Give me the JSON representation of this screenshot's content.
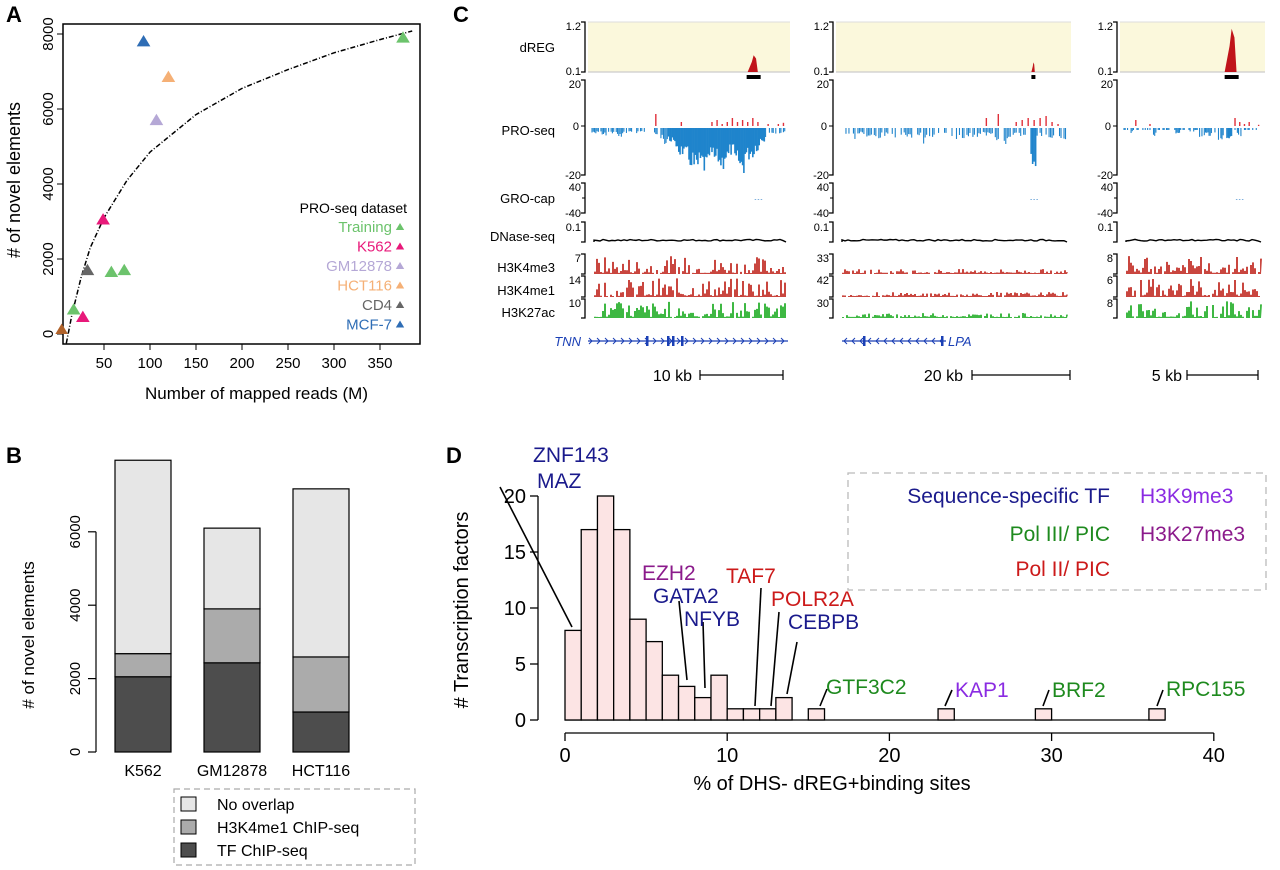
{
  "panel_labels": {
    "a": "A",
    "b": "B",
    "c": "C",
    "d": "D"
  },
  "chart_data": [
    {
      "id": "A",
      "type": "scatter",
      "title": "",
      "xlabel": "Number of mapped reads (M)",
      "ylabel": "# of novel elements",
      "xlim": [
        0,
        385
      ],
      "ylim": [
        -250,
        8300
      ],
      "xticks": [
        50,
        100,
        150,
        200,
        250,
        300,
        350
      ],
      "yticks": [
        0,
        2000,
        4000,
        6000,
        8000
      ],
      "legend_title": "PRO-seq dataset",
      "legend_position": "bottom-right",
      "series": [
        {
          "name": "Training",
          "color": "#6cc36c",
          "points": [
            [
              17,
              650
            ],
            [
              58,
              1650
            ],
            [
              72,
              1700
            ],
            [
              375,
              7900
            ]
          ]
        },
        {
          "name": "K562",
          "color": "#e8197a",
          "points": [
            [
              27,
              450
            ],
            [
              49,
              3050
            ]
          ]
        },
        {
          "name": "GM12878",
          "color": "#b5a8d6",
          "points": [
            [
              107,
              5700
            ]
          ]
        },
        {
          "name": "HCT116",
          "color": "#f5b076",
          "points": [
            [
              120,
              6850
            ]
          ]
        },
        {
          "name": "CD4",
          "color": "#666666",
          "points": [
            [
              32,
              1700
            ]
          ]
        },
        {
          "name": "MCF-7",
          "color": "#2e6db5",
          "points": [
            [
              93,
              7800
            ]
          ]
        }
      ],
      "extra_points": [
        {
          "color": "#b0622a",
          "point": [
            4,
            120
          ]
        }
      ],
      "fit_curve": {
        "style": "dashed",
        "description": "saturating fit",
        "points": [
          [
            9,
            -250
          ],
          [
            15,
            500
          ],
          [
            25,
            1500
          ],
          [
            35,
            2300
          ],
          [
            50,
            3100
          ],
          [
            75,
            4100
          ],
          [
            100,
            4850
          ],
          [
            150,
            5850
          ],
          [
            200,
            6550
          ],
          [
            250,
            7050
          ],
          [
            300,
            7500
          ],
          [
            350,
            7850
          ],
          [
            385,
            8080
          ]
        ]
      }
    },
    {
      "id": "B",
      "type": "bar",
      "stacked": true,
      "xlabel": "",
      "ylabel": "# of novel elements",
      "ylim": [
        0,
        8000
      ],
      "yticks": [
        0,
        2000,
        4000,
        6000
      ],
      "categories": [
        "K562",
        "GM12878",
        "HCT116"
      ],
      "series": [
        {
          "name": "TF ChIP-seq",
          "color": "#4d4d4d",
          "values": [
            2050,
            2430,
            1090
          ]
        },
        {
          "name": "H3K4me1 ChIP-seq",
          "color": "#ababab",
          "values": [
            630,
            1470,
            1500
          ]
        },
        {
          "name": "No overlap",
          "color": "#e6e6e6",
          "values": [
            5270,
            2200,
            4580
          ]
        }
      ],
      "legend_order": [
        "No overlap",
        "H3K4me1 ChIP-seq",
        "TF ChIP-seq"
      ],
      "legend_position": "bottom"
    },
    {
      "id": "C",
      "type": "table",
      "description": "Genome browser tracks",
      "track_labels": [
        "dREG",
        "PRO-seq",
        "GRO-cap",
        "DNase-seq",
        "H3K4me3",
        "H3K4me1",
        "H3K27ac"
      ],
      "loci": [
        {
          "gene": "TNN",
          "strand": "+",
          "scale_label": "10 kb",
          "scales": {
            "dREG": [
              "1.2",
              "0.1"
            ],
            "PRO-seq": [
              "20",
              "0",
              "-20"
            ],
            "GRO-cap": [
              "40",
              "-40"
            ],
            "DNase-seq": [
              "0.1"
            ],
            "H3K4me3": [
              "7"
            ],
            "H3K4me1": [
              "14"
            ],
            "H3K27ac": [
              "10"
            ]
          },
          "dreg_peak": 0.82,
          "dreg_height": 0.35,
          "proseq_minus_profile": [
            0.05,
            0.03,
            0.08,
            0.04,
            0.06,
            0.1,
            0.05,
            0.04,
            0.07,
            0.03,
            0.05,
            0.08,
            0.1,
            0.12,
            0.2,
            0.3,
            0.45,
            0.6,
            0.7,
            0.85,
            1.0,
            0.9,
            1.0,
            0.7,
            0.8,
            0.9,
            0.75,
            0.6,
            0.85,
            1.0,
            0.7,
            0.65,
            0.5,
            0.3,
            0.1,
            0.05,
            0.08,
            0.04
          ],
          "proseq_plus_profile": [
            0,
            0,
            0,
            0,
            0,
            0,
            0,
            0,
            0,
            0,
            0,
            0,
            0.3,
            0,
            0,
            0,
            0,
            0.1,
            0,
            0,
            0,
            0,
            0,
            0.1,
            0.15,
            0.05,
            0.1,
            0.2,
            0.1,
            0.15,
            0.1,
            0.2,
            0.1,
            0,
            0.05,
            0,
            0.05,
            0.08
          ]
        },
        {
          "gene": "LPA",
          "strand": "-",
          "scale_label": "20 kb",
          "scales": {
            "dREG": [
              "1.2",
              "0.1"
            ],
            "PRO-seq": [
              "20",
              "0",
              "-20"
            ],
            "GRO-cap": [
              "40",
              "-40"
            ],
            "DNase-seq": [
              "0.1"
            ],
            "H3K4me3": [
              "33"
            ],
            "H3K4me1": [
              "42"
            ],
            "H3K27ac": [
              "30"
            ]
          },
          "dreg_peak": 0.84,
          "dreg_height": 0.2,
          "proseq_minus_profile": [
            0.1,
            0.08,
            0.15,
            0.05,
            0.1,
            0.08,
            0.12,
            0.1,
            0.06,
            0.12,
            0.08,
            0.1,
            0.15,
            0.1,
            0.2,
            0.1,
            0.12,
            0.08,
            0.1,
            0.15,
            0.12,
            0.1,
            0.15,
            0.12,
            0.08,
            0.1,
            0.15,
            0.2,
            0.12,
            0.1,
            0.1,
            0.15,
            1.0,
            0.1,
            0.08,
            0.12,
            0.1,
            0.15
          ],
          "proseq_plus_profile": [
            0,
            0,
            0,
            0,
            0,
            0,
            0,
            0,
            0,
            0,
            0,
            0,
            0,
            0,
            0,
            0,
            0,
            0,
            0,
            0,
            0,
            0,
            0,
            0,
            0.2,
            0,
            0.3,
            0,
            0,
            0.1,
            0.15,
            0.2,
            0.15,
            0.2,
            0.25,
            0.1,
            0.05,
            0
          ]
        },
        {
          "gene": "",
          "strand": "",
          "scale_label": "5 kb",
          "scales": {
            "dREG": [
              "1.2",
              "0.1"
            ],
            "PRO-seq": [
              "20",
              "0",
              "-20"
            ],
            "GRO-cap": [
              "40",
              "-40"
            ],
            "DNase-seq": [
              "0.1"
            ],
            "H3K4me3": [
              "8"
            ],
            "H3K4me1": [
              "6"
            ],
            "H3K27ac": [
              "8"
            ]
          },
          "dreg_peak": 0.77,
          "dreg_height": 0.9,
          "proseq_minus_profile": [
            0,
            0.05,
            0,
            0,
            0,
            0,
            0.1,
            0,
            0,
            0,
            0,
            0.05,
            0,
            0,
            0.05,
            0,
            0.1,
            0.08,
            0.12,
            0.1,
            0.15,
            0.12,
            0.3,
            0,
            0.1,
            0,
            0,
            0,
            0
          ],
          "proseq_plus_profile": [
            0,
            0,
            0.15,
            0,
            0,
            0.05,
            0,
            0,
            0,
            0,
            0,
            0,
            0,
            0,
            0,
            0,
            0,
            0,
            0,
            0,
            0,
            0,
            0,
            0.2,
            0.1,
            0.05,
            0.1,
            0,
            0.03
          ]
        }
      ]
    },
    {
      "id": "D",
      "type": "bar",
      "histogram": true,
      "xlabel": "% of DHS- dREG+binding sites",
      "ylabel": "# Transcription factors",
      "xlim": [
        0,
        40
      ],
      "ylim": [
        0,
        20
      ],
      "xticks": [
        0,
        10,
        20,
        30,
        40
      ],
      "yticks": [
        0,
        5,
        10,
        15,
        20
      ],
      "bin_width": 1,
      "bin_start": 0,
      "values": [
        8,
        17,
        20,
        17,
        9,
        7,
        4,
        3,
        2,
        4,
        1,
        1,
        1,
        2,
        0,
        1,
        0,
        0,
        0,
        0,
        0,
        0,
        0,
        1,
        0,
        0,
        0,
        0,
        0,
        1,
        0,
        0,
        0,
        0,
        0,
        0,
        1
      ],
      "bar_color": "#fce4e4",
      "annotations": [
        {
          "text": "ZNF143",
          "category": "Sequence-specific TF",
          "x": 0.5
        },
        {
          "text": "MAZ",
          "category": "Sequence-specific TF",
          "x": 0.5
        },
        {
          "text": "EZH2",
          "category": "H3K27me3",
          "x": 7.5
        },
        {
          "text": "GATA2",
          "category": "Sequence-specific TF",
          "x": 7.5
        },
        {
          "text": "NFYB",
          "category": "Sequence-specific TF",
          "x": 8.5
        },
        {
          "text": "TAF7",
          "category": "Pol II/ PIC",
          "x": 11.5
        },
        {
          "text": "POLR2A",
          "category": "Pol II/ PIC",
          "x": 12.5
        },
        {
          "text": "CEBPB",
          "category": "Sequence-specific TF",
          "x": 13.5
        },
        {
          "text": "GTF3C2",
          "category": "Pol III/ PIC",
          "x": 15.5
        },
        {
          "text": "KAP1",
          "category": "H3K9me3",
          "x": 23.5
        },
        {
          "text": "BRF2",
          "category": "Pol III/ PIC",
          "x": 29.5
        },
        {
          "text": "RPC155",
          "category": "Pol III/ PIC",
          "x": 36.5
        }
      ],
      "legend": [
        {
          "label": "Sequence-specific TF",
          "color": "#1a1a8c"
        },
        {
          "label": "Pol III/ PIC",
          "color": "#1e8a1e"
        },
        {
          "label": "Pol II/ PIC",
          "color": "#cc1a1a"
        },
        {
          "label": "H3K9me3",
          "color": "#8a2be2"
        },
        {
          "label": "H3K27me3",
          "color": "#8b1a8b"
        }
      ],
      "legend_position": "top-right"
    }
  ]
}
